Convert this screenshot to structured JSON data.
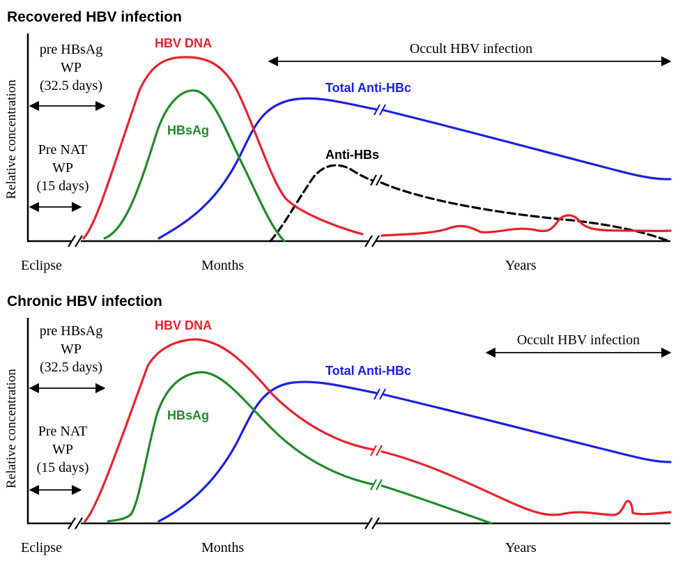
{
  "colors": {
    "hbv_dna": "#e8212b",
    "hbsag": "#1f8a2a",
    "anti_hbc": "#1a20e0",
    "anti_hbs": "#000000",
    "axis": "#000000"
  },
  "recovered": {
    "title": "Recovered  HBV infection",
    "y_axis_label": "Relative concentration",
    "pre_hbsag_lines": [
      "pre HBsAg",
      "WP",
      "(32.5 days)"
    ],
    "pre_nat_lines": [
      "Pre NAT",
      "WP",
      "(15 days)"
    ],
    "occult_label": "Occult HBV infection",
    "labels": {
      "hbv_dna": "HBV DNA",
      "hbsag": "HBsAg",
      "anti_hbc": "Total Anti-HBc",
      "anti_hbs": "Anti-HBs"
    },
    "x_labels": {
      "eclipse": "Eclipse",
      "months": "Months",
      "years": "Years"
    }
  },
  "chronic": {
    "title": "Chronic  HBV infection",
    "y_axis_label": "Relative concentration",
    "pre_hbsag_lines": [
      "pre HBsAg",
      "WP",
      "(32.5 days)"
    ],
    "pre_nat_lines": [
      "Pre NAT",
      "WP",
      "(15 days)"
    ],
    "occult_label": "Occult HBV infection",
    "labels": {
      "hbv_dna": "HBV DNA",
      "hbsag": "HBsAg",
      "anti_hbc": "Total Anti-HBc"
    },
    "x_labels": {
      "eclipse": "Eclipse",
      "months": "Months",
      "years": "Years"
    }
  }
}
